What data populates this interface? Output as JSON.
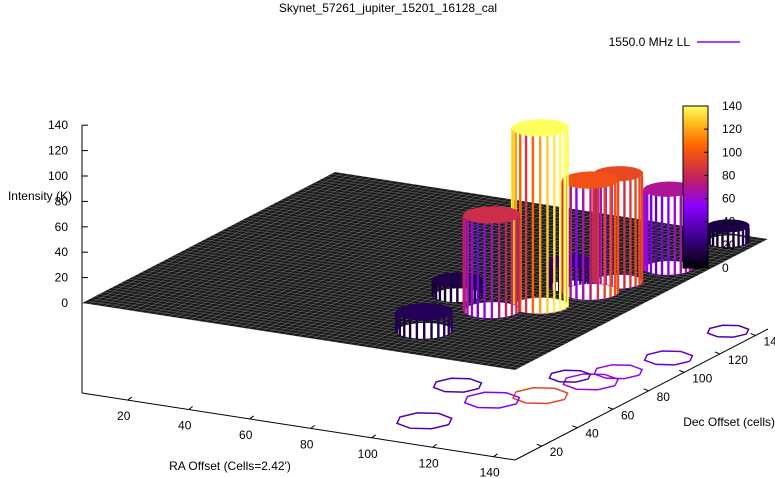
{
  "chart_data": {
    "type": "surface3d",
    "title": "Skynet_57261_jupiter_15201_16128_cal",
    "zlabel": "Intensity (K)",
    "xlabel": "RA Offset (Cells=2.42')",
    "ylabel": "Dec Offset (cells)",
    "legend": {
      "label": "1550.0 MHz LL",
      "placement": "top-right"
    },
    "z_ticks": [
      "0",
      "20",
      "40",
      "60",
      "80",
      "100",
      "120",
      "140"
    ],
    "x_ticks": [
      "20",
      "40",
      "60",
      "80",
      "100",
      "120",
      "140"
    ],
    "y_ticks": [
      "20",
      "40",
      "60",
      "80",
      "100",
      "120",
      "140"
    ],
    "colorbar_ticks": [
      "0",
      "20",
      "40",
      "60",
      "80",
      "100",
      "120",
      "140"
    ],
    "zlim": [
      0,
      140
    ],
    "peaks": [
      {
        "x": 122,
        "y": 62,
        "z": 140,
        "radius": 8
      },
      {
        "x": 112,
        "y": 52,
        "z": 75,
        "radius": 8
      },
      {
        "x": 128,
        "y": 80,
        "z": 88,
        "radius": 8
      },
      {
        "x": 130,
        "y": 92,
        "z": 85,
        "radius": 7
      },
      {
        "x": 136,
        "y": 110,
        "z": 62,
        "radius": 7
      },
      {
        "x": 105,
        "y": 26,
        "z": 15,
        "radius": 8
      },
      {
        "x": 96,
        "y": 60,
        "z": 12,
        "radius": 7
      },
      {
        "x": 138,
        "y": 140,
        "z": 12,
        "radius": 6
      },
      {
        "x": 120,
        "y": 82,
        "z": 20,
        "radius": 6
      }
    ],
    "colors": {
      "mesh": "#1a1a1a",
      "grid_lines": "#ffffff",
      "palette": [
        "#000000",
        "#3a0088",
        "#8a00ff",
        "#c02060",
        "#ff6000",
        "#ffc020",
        "#ffff60"
      ]
    }
  }
}
